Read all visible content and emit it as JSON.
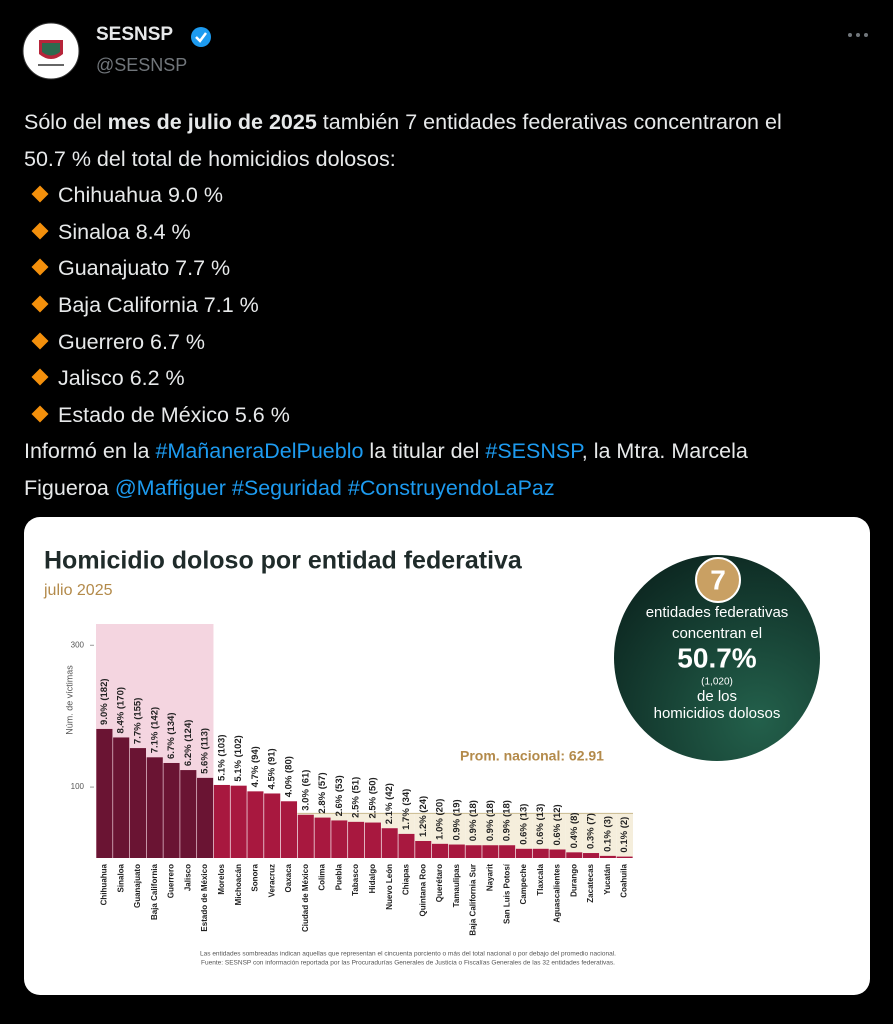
{
  "tweet": {
    "author": "SESNSP",
    "handle": "@SESNSP",
    "intro": [
      {
        "text": "Sólo del "
      },
      {
        "text": "mes de julio de 2025",
        "bold": true
      },
      {
        "text": " también 7 entidades federativas concentraron el 50.7 % del total de homicidios dolosos:"
      }
    ],
    "list": [
      "Chihuahua 9.0 %",
      "Sinaloa 8.4 %",
      "Guanajuato 7.7 %",
      "Baja California 7.1 %",
      "Guerrero 6.7 %",
      "Jalisco 6.2 %",
      "Estado de México 5.6 %"
    ],
    "closing": [
      {
        "text": "Informó en la "
      },
      {
        "text": "#MañaneraDelPueblo",
        "link": true
      },
      {
        "text": " la titular del "
      },
      {
        "text": "#SESNSP",
        "link": true
      },
      {
        "text": ", la Mtra. Marcela Figueroa "
      },
      {
        "text": "@Maffiguer",
        "link": true
      },
      {
        "text": "#Seguridad",
        "link": true
      },
      {
        "text": "#ConstruyendoLaPaz",
        "link": true
      }
    ]
  },
  "chart_data": {
    "type": "bar",
    "title": "Homicidio doloso por entidad federativa",
    "subtitle": "julio 2025",
    "y_label": "Núm. de víctimas",
    "categories": [
      "Chihuahua",
      "Sinaloa",
      "Guanajuato",
      "Baja California",
      "Guerrero",
      "Jalisco",
      "Estado de México",
      "Morelos",
      "Michoacán",
      "Sonora",
      "Veracruz",
      "Oaxaca",
      "Ciudad de México",
      "Colima",
      "Puebla",
      "Tabasco",
      "Hidalgo",
      "Nuevo León",
      "Chiapas",
      "Quintana Roo",
      "Querétaro",
      "Tamaulipas",
      "Baja California Sur",
      "Nayarit",
      "San Luis Potosí",
      "Campeche",
      "Tlaxcala",
      "Aguascalientes",
      "Durango",
      "Zacatecas",
      "Yucatán",
      "Coahuila"
    ],
    "values": [
      182,
      170,
      155,
      142,
      134,
      124,
      113,
      103,
      102,
      94,
      91,
      80,
      61,
      57,
      53,
      51,
      50,
      42,
      34,
      24,
      20,
      19,
      18,
      18,
      18,
      13,
      13,
      12,
      8,
      7,
      3,
      2
    ],
    "value_labels": [
      "9.0% (182)",
      "8.4% (170)",
      "7.7% (155)",
      "7.1% (142)",
      "6.7% (134)",
      "6.2% (124)",
      "5.6% (113)",
      "5.1% (103)",
      "5.1% (102)",
      "4.7% (94)",
      "4.5% (91)",
      "4.0% (80)",
      "3.0% (61)",
      "2.8% (57)",
      "2.6% (53)",
      "2.5% (51)",
      "2.5% (50)",
      "2.1% (42)",
      "1.7% (34)",
      "1.2% (24)",
      "1.0% (20)",
      "0.9% (19)",
      "0.9% (18)",
      "0.9% (18)",
      "0.9% (18)",
      "0.6% (13)",
      "0.6% (13)",
      "0.6% (12)",
      "0.4% (8)",
      "0.3% (7)",
      "0.1% (3)",
      "0.1% (2)"
    ],
    "colors": [
      "#6a1433",
      "#6a1433",
      "#6a1433",
      "#6a1433",
      "#6a1433",
      "#6a1433",
      "#6a1433",
      "#a8183f",
      "#a8183f",
      "#a8183f",
      "#a8183f",
      "#a8183f",
      "#a8183f",
      "#a8183f",
      "#a8183f",
      "#a8183f",
      "#a8183f",
      "#a8183f",
      "#a8183f",
      "#a8183f",
      "#a8183f",
      "#a8183f",
      "#a8183f",
      "#a8183f",
      "#a8183f",
      "#a8183f",
      "#a8183f",
      "#a8183f",
      "#a8183f",
      "#a8183f",
      "#a8183f",
      "#a8183f"
    ],
    "ylim": [
      0,
      330
    ],
    "yticks": [
      100,
      300
    ],
    "average": {
      "value": 62.91,
      "label": "Prom. nacional: 62.91"
    },
    "callout": {
      "number": "7",
      "lines": [
        "entidades federativas",
        "concentran el"
      ],
      "percent": "50.7%",
      "count": "(1,020)",
      "lines2": [
        "de los",
        "homicidios dolosos"
      ]
    },
    "notes": [
      "Las entidades sombreadas indican aquellas que representan el cincuenta porciento o más del total nacional o por debajo del promedio nacional.",
      "Fuente: SESNSP con información reportada por las Procuradurías Generales de Justicia o Fiscalías Generales de las 32 entidades federativas."
    ]
  }
}
